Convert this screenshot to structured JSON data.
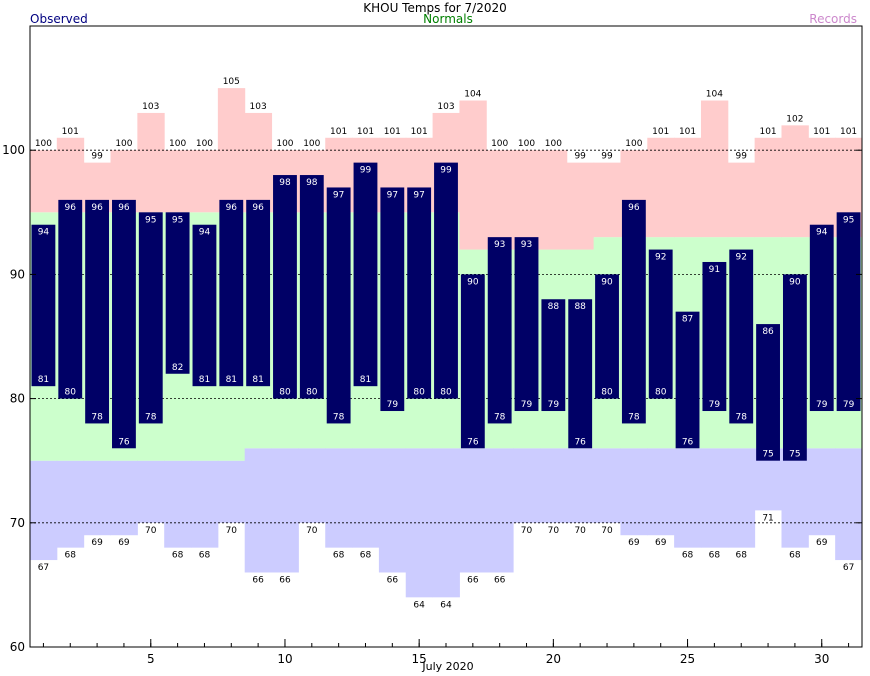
{
  "chart_data": {
    "type": "bar",
    "title": "KHOU Temps for 7/2020",
    "xlabel": "July 2020",
    "ylabel": "",
    "legend": [
      "Observed",
      "Normals",
      "Records"
    ],
    "legend_placement": "top",
    "xlim": [
      1,
      31
    ],
    "ylim": [
      60,
      110
    ],
    "yticks": [
      60,
      70,
      80,
      90,
      100
    ],
    "xticks": [
      5,
      10,
      15,
      20,
      25,
      30
    ],
    "grid": "dashed horizontal at 70, 80, 90, 100",
    "colors": {
      "observed": "#000066",
      "normals": "#ccffcc",
      "records_high": "#ffcccc",
      "records_low": "#ccccff"
    },
    "days": [
      1,
      2,
      3,
      4,
      5,
      6,
      7,
      8,
      9,
      10,
      11,
      12,
      13,
      14,
      15,
      16,
      17,
      18,
      19,
      20,
      21,
      22,
      23,
      24,
      25,
      26,
      27,
      28,
      29,
      30,
      31
    ],
    "observed_high": [
      94,
      96,
      96,
      96,
      95,
      95,
      94,
      96,
      96,
      98,
      98,
      97,
      99,
      97,
      97,
      99,
      90,
      93,
      93,
      88,
      88,
      90,
      96,
      92,
      87,
      91,
      92,
      86,
      90,
      94,
      95
    ],
    "observed_low": [
      81,
      80,
      78,
      76,
      78,
      82,
      81,
      81,
      81,
      80,
      80,
      78,
      81,
      79,
      80,
      80,
      76,
      78,
      79,
      79,
      76,
      80,
      78,
      80,
      76,
      79,
      78,
      75,
      75,
      79,
      79
    ],
    "normal_high": [
      95,
      95,
      95,
      95,
      95,
      95,
      95,
      95,
      95,
      95,
      95,
      95,
      95,
      95,
      95,
      95,
      92,
      92,
      92,
      92,
      92,
      93,
      93,
      93,
      93,
      93,
      93,
      93,
      93,
      93,
      93
    ],
    "normal_low": [
      75,
      75,
      75,
      75,
      75,
      75,
      75,
      75,
      76,
      76,
      76,
      76,
      76,
      76,
      76,
      76,
      76,
      76,
      76,
      76,
      76,
      76,
      76,
      76,
      76,
      76,
      76,
      76,
      76,
      76,
      76
    ],
    "record_high": [
      100,
      101,
      99,
      100,
      103,
      100,
      100,
      105,
      103,
      100,
      100,
      101,
      101,
      101,
      101,
      103,
      104,
      100,
      100,
      100,
      99,
      99,
      100,
      101,
      101,
      104,
      99,
      101,
      102,
      101,
      101
    ],
    "record_low": [
      67,
      68,
      69,
      69,
      70,
      68,
      68,
      70,
      66,
      66,
      70,
      68,
      68,
      66,
      64,
      64,
      66,
      66,
      70,
      70,
      70,
      70,
      69,
      69,
      68,
      68,
      68,
      71,
      68,
      69,
      67
    ]
  }
}
